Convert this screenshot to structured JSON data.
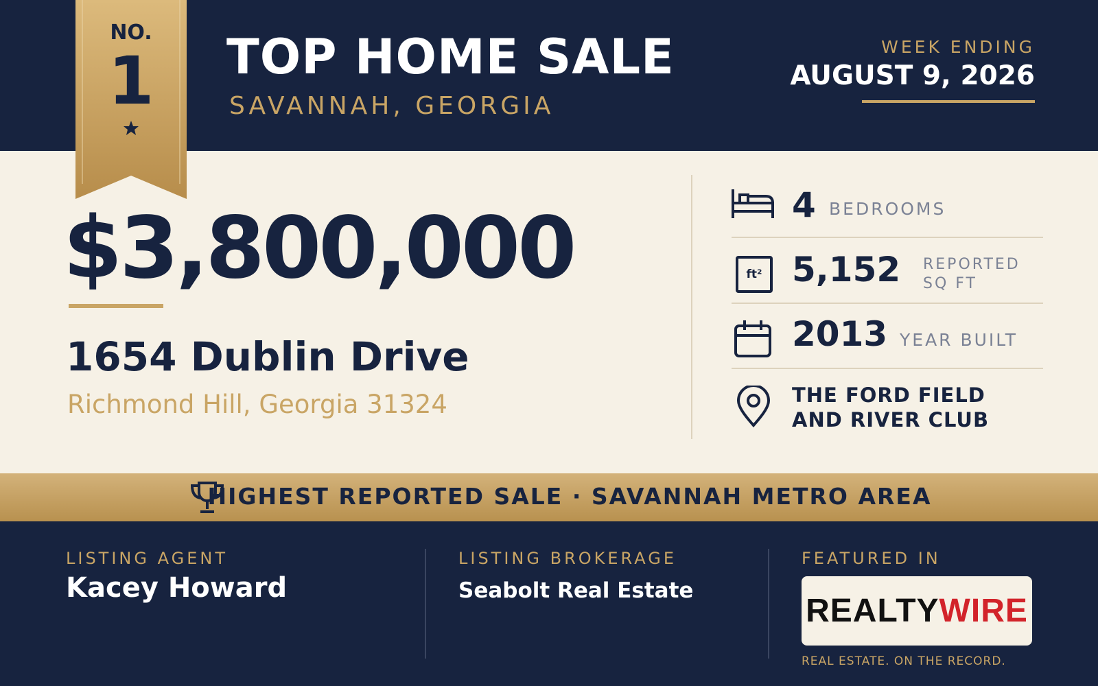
{
  "badge": {
    "top": "NO.",
    "number": "1"
  },
  "header": {
    "title": "TOP HOME SALE",
    "subtitle": "SAVANNAH, GEORGIA",
    "week_label": "WEEK ENDING",
    "week_date": "AUGUST 9, 2026"
  },
  "price": "$3,800,000",
  "address": {
    "street": "1654 Dublin Drive",
    "city": "Richmond Hill, Georgia 31324"
  },
  "stats": [
    {
      "value": "4",
      "label": "BEDROOMS"
    },
    {
      "icon": "ft²",
      "value": "5,152",
      "label": "REPORTED SQ FT"
    },
    {
      "value": "2013",
      "label": "YEAR BUILT"
    },
    {
      "value": "THE FORD FIELD AND RIVER CLUB"
    }
  ],
  "banner": "HIGHEST REPORTED SALE · SAVANNAH METRO AREA",
  "footer": {
    "agent_label": "LISTING AGENT",
    "agent": "Kacey Howard",
    "brokerage_label": "LISTING BROKERAGE",
    "brokerage": "Seabolt Real Estate",
    "featured_label": "FEATURED IN",
    "logo_first": "REALTY",
    "logo_second": "WIRE",
    "tagline": "REAL ESTATE. ON THE RECORD."
  }
}
